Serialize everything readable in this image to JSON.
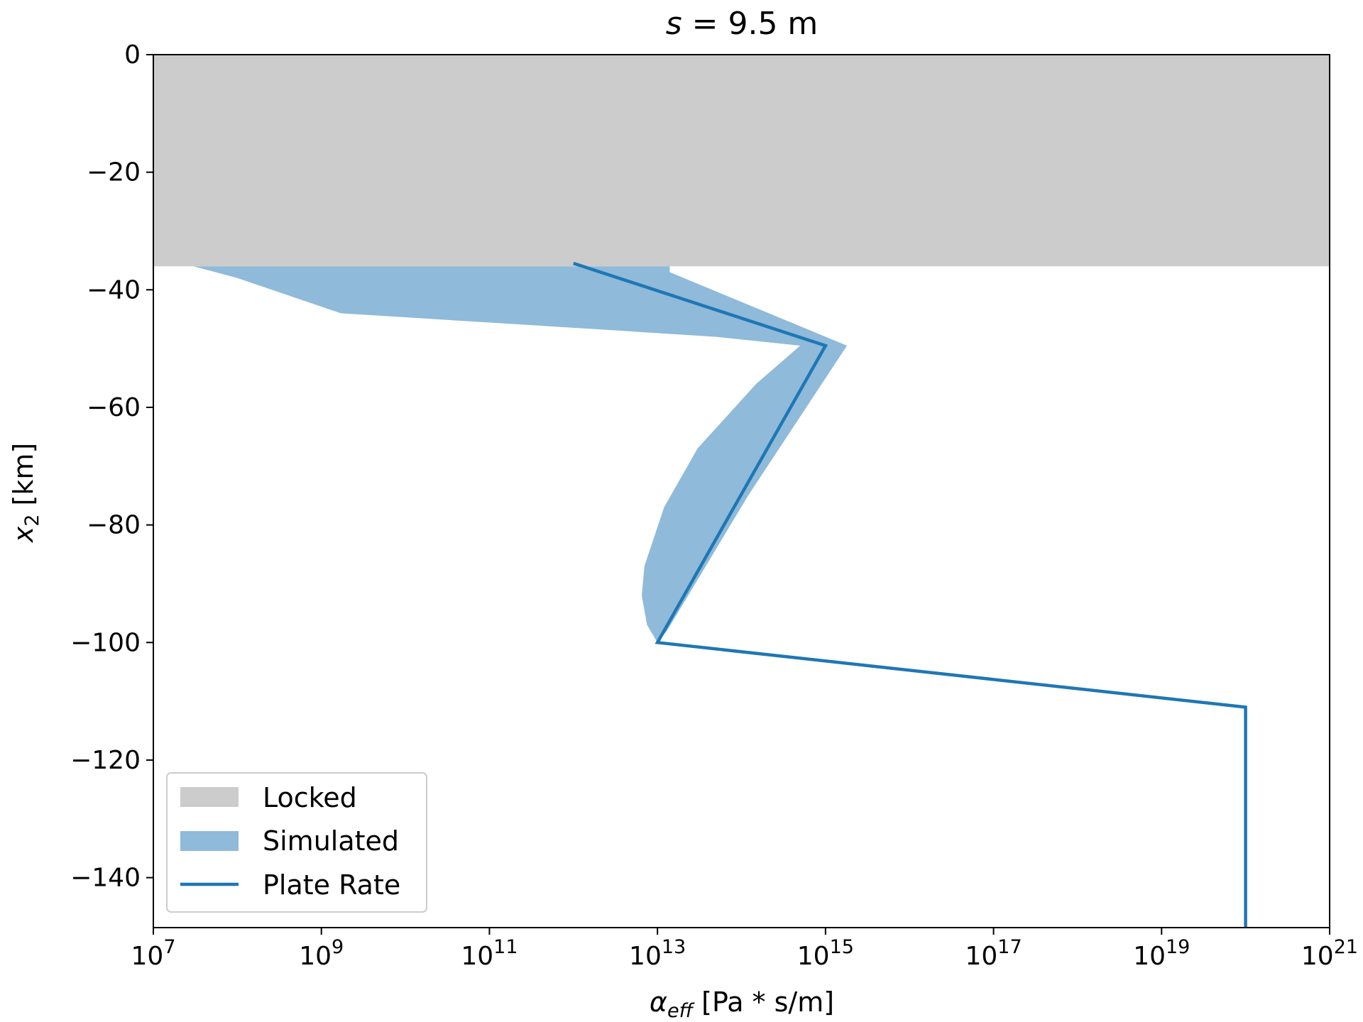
{
  "chart_data": {
    "type": "area",
    "title": "s = 9.5 m",
    "title_parts": {
      "var": "s",
      "rest": " = 9.5 m"
    },
    "xlabel": "α_eff [Pa * s/m]",
    "xlabel_parts": {
      "sym": "α",
      "sub": "eff",
      "rest": " [Pa * s/m]"
    },
    "ylabel": "x2 [km]",
    "ylabel_parts": {
      "var": "x",
      "sub": "2",
      "rest": " [km]"
    },
    "x_scale": "log",
    "xlim": [
      10000000.0,
      1e+21
    ],
    "ylim": [
      -148.5,
      0
    ],
    "x_ticks": [
      {
        "base": "10",
        "exp": "7",
        "value": 10000000.0
      },
      {
        "base": "10",
        "exp": "9",
        "value": 1000000000.0
      },
      {
        "base": "10",
        "exp": "11",
        "value": 100000000000.0
      },
      {
        "base": "10",
        "exp": "13",
        "value": 10000000000000.0
      },
      {
        "base": "10",
        "exp": "15",
        "value": 1000000000000000.0
      },
      {
        "base": "10",
        "exp": "17",
        "value": 1e+17
      },
      {
        "base": "10",
        "exp": "19",
        "value": 1e+19
      },
      {
        "base": "10",
        "exp": "21",
        "value": 1e+21
      }
    ],
    "y_ticks": [
      {
        "label": "0",
        "value": 0
      },
      {
        "label": "−20",
        "value": -20
      },
      {
        "label": "−40",
        "value": -40
      },
      {
        "label": "−60",
        "value": -60
      },
      {
        "label": "−80",
        "value": -80
      },
      {
        "label": "−100",
        "value": -100
      },
      {
        "label": "−120",
        "value": -120
      },
      {
        "label": "−140",
        "value": -140
      }
    ],
    "grid": false,
    "legend": {
      "placement": "lower-left",
      "entries": [
        {
          "label": "Locked",
          "kind": "patch",
          "color": "#cccccc"
        },
        {
          "label": "Simulated",
          "kind": "patch",
          "color": "#8fbada"
        },
        {
          "label": "Plate Rate",
          "kind": "line",
          "color": "#1f77b4"
        }
      ]
    },
    "locked": {
      "name": "Locked",
      "y_top": 0,
      "y_bottom": -36,
      "color": "#cccccc"
    },
    "simulated": {
      "name": "Simulated",
      "color": "#8fbada",
      "upper": [
        {
          "x": 14000000000000.0,
          "y": -36
        },
        {
          "x": 14000000000000.0,
          "y": -37
        },
        {
          "x": 25000000000000.0,
          "y": -38.5
        },
        {
          "x": 1800000000000000.0,
          "y": -49.5
        },
        {
          "x": 120000000000000.0,
          "y": -75
        },
        {
          "x": 13000000000000.0,
          "y": -98
        },
        {
          "x": 10000000000000.0,
          "y": -100
        }
      ],
      "lower": [
        {
          "x": 30000000.0,
          "y": -36
        },
        {
          "x": 100000000.0,
          "y": -38
        },
        {
          "x": 1700000000.0,
          "y": -44
        },
        {
          "x": 4000000000000.0,
          "y": -47
        },
        {
          "x": 50000000000000.0,
          "y": -48
        },
        {
          "x": 500000000000000.0,
          "y": -49.5
        },
        {
          "x": 150000000000000.0,
          "y": -56
        },
        {
          "x": 30000000000000.0,
          "y": -67
        },
        {
          "x": 12000000000000.0,
          "y": -77
        },
        {
          "x": 7000000000000.0,
          "y": -87
        },
        {
          "x": 6500000000000.0,
          "y": -92
        },
        {
          "x": 7500000000000.0,
          "y": -97
        },
        {
          "x": 10000000000000.0,
          "y": -100
        }
      ]
    },
    "plate_rate": {
      "name": "Plate Rate",
      "color": "#1f77b4",
      "points": [
        {
          "x": 1000000000000.0,
          "y": -35.5
        },
        {
          "x": 1000000000000000.0,
          "y": -49.5
        },
        {
          "x": 10000000000000.0,
          "y": -100
        },
        {
          "x": 1e+20,
          "y": -111
        },
        {
          "x": 1e+20,
          "y": -148.5
        }
      ]
    }
  }
}
